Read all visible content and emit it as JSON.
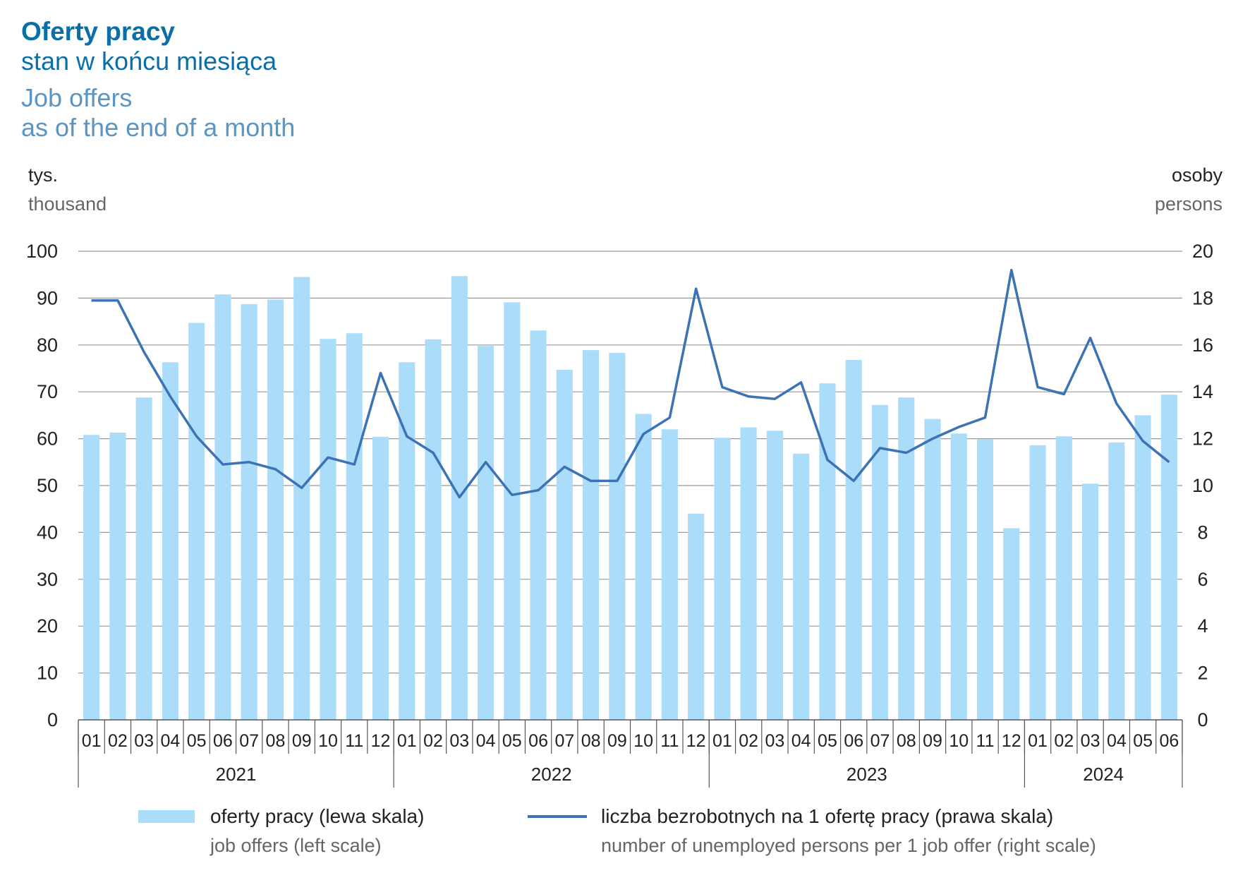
{
  "header": {
    "title_pl": "Oferty pracy",
    "subtitle_pl": "stan w końcu miesiąca",
    "title_en": "Job offers",
    "subtitle_en": "as of the end of a month"
  },
  "colors": {
    "bars": "#abdcfa",
    "line": "#3b73b4",
    "grid": "#999999",
    "title": "#0a6fa6",
    "title_en": "#5b95c1"
  },
  "chart_data": {
    "type": "bar",
    "title": "Oferty pracy",
    "left_axis": {
      "unit_pl": "tys.",
      "unit_en": "thousand",
      "ylim": [
        0,
        100
      ],
      "ticks": [
        0,
        10,
        20,
        30,
        40,
        50,
        60,
        70,
        80,
        90,
        100
      ]
    },
    "right_axis": {
      "unit_pl": "osoby",
      "unit_en": "persons",
      "ylim": [
        0,
        20
      ],
      "ticks": [
        0,
        2,
        4,
        6,
        8,
        10,
        12,
        14,
        16,
        18,
        20
      ]
    },
    "grid": true,
    "legend_position": "bottom",
    "years": [
      {
        "label": "2021",
        "months": 12
      },
      {
        "label": "2022",
        "months": 12
      },
      {
        "label": "2023",
        "months": 12
      },
      {
        "label": "2024",
        "months": 6
      }
    ],
    "categories": [
      "01",
      "02",
      "03",
      "04",
      "05",
      "06",
      "07",
      "08",
      "09",
      "10",
      "11",
      "12",
      "01",
      "02",
      "03",
      "04",
      "05",
      "06",
      "07",
      "08",
      "09",
      "10",
      "11",
      "12",
      "01",
      "02",
      "03",
      "04",
      "05",
      "06",
      "07",
      "08",
      "09",
      "10",
      "11",
      "12",
      "01",
      "02",
      "03",
      "04",
      "05",
      "06"
    ],
    "series": [
      {
        "name_pl": "oferty pracy (lewa skala)",
        "name_en": "job offers (left scale)",
        "type": "bar",
        "axis": "left",
        "values": [
          60.8,
          61.3,
          68.8,
          76.3,
          84.7,
          90.8,
          88.7,
          89.7,
          94.5,
          81.3,
          82.5,
          60.4,
          76.3,
          81.2,
          94.7,
          79.8,
          89.1,
          83.1,
          74.7,
          78.9,
          78.3,
          65.3,
          62.0,
          44.0,
          60.2,
          62.4,
          61.7,
          56.8,
          71.8,
          76.8,
          67.2,
          68.8,
          64.2,
          61.1,
          59.9,
          40.9,
          58.6,
          60.5,
          50.4,
          59.2,
          65.0,
          69.4
        ]
      },
      {
        "name_pl": "liczba bezrobotnych na 1 ofertę pracy (prawa skala)",
        "name_en": "number of unemployed persons per 1 job offer (right scale)",
        "type": "line",
        "axis": "right",
        "values": [
          17.9,
          17.9,
          15.7,
          13.8,
          12.1,
          10.9,
          11.0,
          10.7,
          9.9,
          11.2,
          10.9,
          14.8,
          12.1,
          11.4,
          9.5,
          11.0,
          9.6,
          9.8,
          10.8,
          10.2,
          10.2,
          12.2,
          12.9,
          18.4,
          14.2,
          13.8,
          13.7,
          14.4,
          11.1,
          10.2,
          11.6,
          11.4,
          12.0,
          12.5,
          12.9,
          19.2,
          14.2,
          13.9,
          16.3,
          13.5,
          11.9,
          11.0
        ]
      }
    ]
  }
}
